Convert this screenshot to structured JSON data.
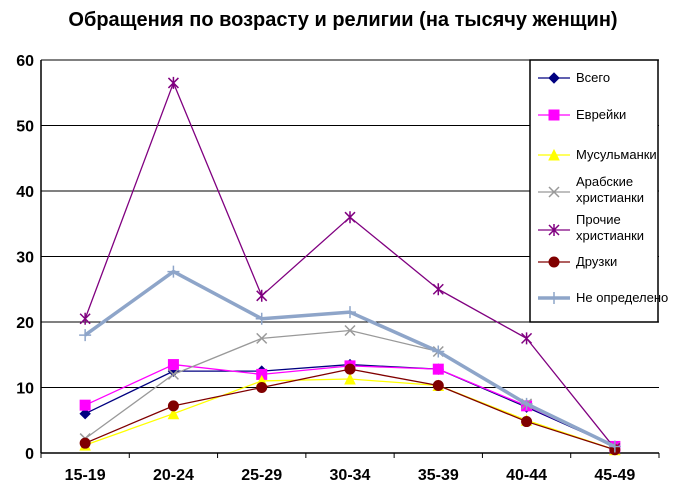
{
  "chart_data": {
    "type": "line",
    "title": "Обращения по возрасту и религии (на тысячу женщин)",
    "xlabel": "",
    "ylabel": "",
    "categories": [
      "15-19",
      "20-24",
      "25-29",
      "30-34",
      "35-39",
      "40-44",
      "45-49"
    ],
    "ylim": [
      0,
      60
    ],
    "yticks": [
      0,
      10,
      20,
      30,
      40,
      50,
      60
    ],
    "grid": "horizontal",
    "legend_position": "right",
    "series": [
      {
        "name": "Всего",
        "color": "#000080",
        "marker": "diamond",
        "values": [
          6,
          12.5,
          12.5,
          13.5,
          12.8,
          7,
          1
        ]
      },
      {
        "name": "Еврейки",
        "color": "#ff00ff",
        "marker": "square",
        "values": [
          7.3,
          13.5,
          12,
          13.3,
          12.8,
          7.2,
          1
        ]
      },
      {
        "name": "Мусульманки",
        "color": "#ffff00",
        "marker": "triangle",
        "values": [
          1.2,
          6,
          11,
          11.3,
          10.3,
          5,
          0.5
        ]
      },
      {
        "name": "Арабские христианки",
        "color": "#999999",
        "marker": "x",
        "values": [
          2.2,
          12,
          17.5,
          18.7,
          15.5,
          7.5,
          0.8
        ]
      },
      {
        "name": "Прочие христианки",
        "color": "#800080",
        "marker": "star",
        "values": [
          20.5,
          56.5,
          24,
          36,
          25,
          17.5,
          0.7
        ]
      },
      {
        "name": "Друзки",
        "color": "#800000",
        "marker": "circle",
        "values": [
          1.5,
          7.2,
          10,
          12.8,
          10.3,
          4.8,
          0.5
        ]
      },
      {
        "name": "Не определено",
        "color": "#8ea5c9",
        "marker": "plus",
        "values": [
          18,
          27.7,
          20.5,
          21.5,
          15.5,
          7.5,
          1
        ]
      }
    ],
    "legend_labels": [
      [
        "Всего"
      ],
      [
        "Еврейки"
      ],
      [
        "Мусульманки"
      ],
      [
        "Арабские",
        "христианки"
      ],
      [
        "Прочие",
        "христианки"
      ],
      [
        "Друзки"
      ],
      [
        "Не определено"
      ]
    ]
  }
}
